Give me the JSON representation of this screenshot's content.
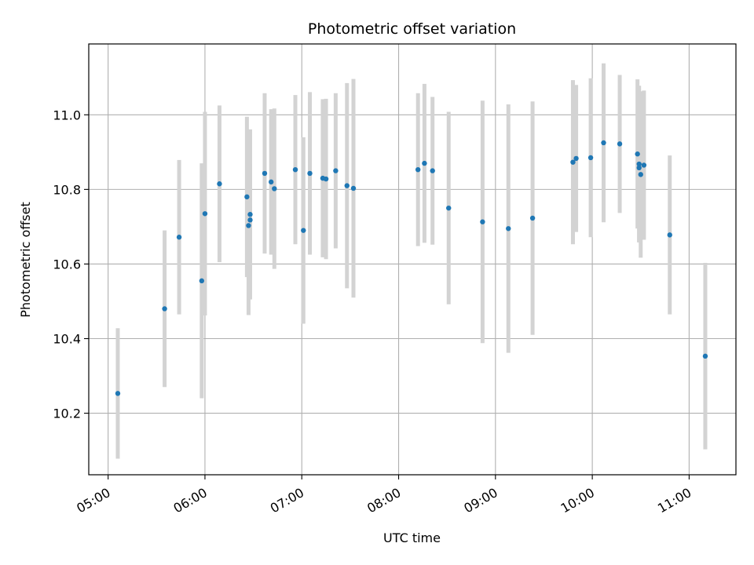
{
  "chart_data": {
    "type": "scatter",
    "title": "Photometric offset variation",
    "xlabel": "UTC time",
    "ylabel": "Photometric offset",
    "xlim": [
      "04:48",
      "11:29"
    ],
    "ylim": [
      10.035,
      11.19
    ],
    "grid": true,
    "x_ticks": [
      "05:00",
      "06:00",
      "07:00",
      "08:00",
      "09:00",
      "10:00",
      "11:00"
    ],
    "y_ticks": [
      "10.2",
      "10.4",
      "10.6",
      "10.8",
      "11.0"
    ],
    "colors": {
      "point": "#1f77b4",
      "errorbar": "#d3d3d3",
      "grid": "#b0b0b0"
    },
    "points": [
      {
        "t": "05:06",
        "y": 10.253,
        "err": 0.175
      },
      {
        "t": "05:35",
        "y": 10.48,
        "err": 0.21
      },
      {
        "t": "05:44",
        "y": 10.672,
        "err": 0.207
      },
      {
        "t": "05:58",
        "y": 10.555,
        "err": 0.315
      },
      {
        "t": "06:00",
        "y": 10.735,
        "err": 0.273
      },
      {
        "t": "06:09",
        "y": 10.815,
        "err": 0.21
      },
      {
        "t": "06:26",
        "y": 10.78,
        "err": 0.215
      },
      {
        "t": "06:27",
        "y": 10.703,
        "err": 0.24
      },
      {
        "t": "06:28",
        "y": 10.718,
        "err": 0.15
      },
      {
        "t": "06:28",
        "y": 10.733,
        "err": 0.228
      },
      {
        "t": "06:37",
        "y": 10.843,
        "err": 0.215
      },
      {
        "t": "06:41",
        "y": 10.82,
        "err": 0.195
      },
      {
        "t": "06:43",
        "y": 10.802,
        "err": 0.215
      },
      {
        "t": "06:56",
        "y": 10.853,
        "err": 0.2
      },
      {
        "t": "07:01",
        "y": 10.69,
        "err": 0.25
      },
      {
        "t": "07:05",
        "y": 10.843,
        "err": 0.218
      },
      {
        "t": "07:13",
        "y": 10.83,
        "err": 0.212
      },
      {
        "t": "07:15",
        "y": 10.828,
        "err": 0.215
      },
      {
        "t": "07:21",
        "y": 10.85,
        "err": 0.208
      },
      {
        "t": "07:28",
        "y": 10.81,
        "err": 0.275
      },
      {
        "t": "07:32",
        "y": 10.803,
        "err": 0.293
      },
      {
        "t": "08:12",
        "y": 10.853,
        "err": 0.205
      },
      {
        "t": "08:16",
        "y": 10.87,
        "err": 0.213
      },
      {
        "t": "08:21",
        "y": 10.85,
        "err": 0.198
      },
      {
        "t": "08:31",
        "y": 10.75,
        "err": 0.258
      },
      {
        "t": "08:52",
        "y": 10.713,
        "err": 0.325
      },
      {
        "t": "09:08",
        "y": 10.695,
        "err": 0.333
      },
      {
        "t": "09:23",
        "y": 10.723,
        "err": 0.313
      },
      {
        "t": "09:48",
        "y": 10.873,
        "err": 0.22
      },
      {
        "t": "09:50",
        "y": 10.883,
        "err": 0.197
      },
      {
        "t": "09:59",
        "y": 10.885,
        "err": 0.213
      },
      {
        "t": "10:07",
        "y": 10.925,
        "err": 0.213
      },
      {
        "t": "10:17",
        "y": 10.922,
        "err": 0.185
      },
      {
        "t": "10:28",
        "y": 10.895,
        "err": 0.2
      },
      {
        "t": "10:29",
        "y": 10.868,
        "err": 0.21
      },
      {
        "t": "10:29",
        "y": 10.858,
        "err": 0.2
      },
      {
        "t": "10:30",
        "y": 10.84,
        "err": 0.223
      },
      {
        "t": "10:32",
        "y": 10.865,
        "err": 0.2
      },
      {
        "t": "10:48",
        "y": 10.678,
        "err": 0.213
      },
      {
        "t": "11:10",
        "y": 10.353,
        "err": 0.25
      }
    ]
  }
}
